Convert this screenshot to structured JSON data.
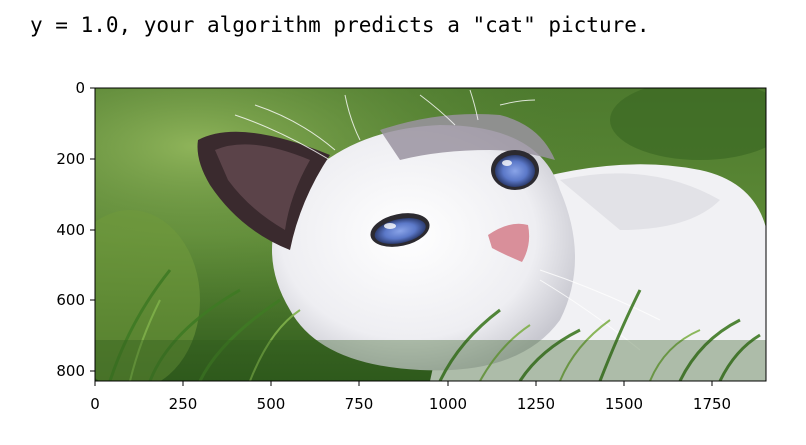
{
  "output": {
    "text": "y = 1.0, your algorithm predicts a \"cat\" picture."
  },
  "plot": {
    "image_subject": "white cat with blue eyes lying in green grass",
    "x_ticks": [
      "0",
      "250",
      "500",
      "750",
      "1000",
      "1250",
      "1500",
      "1750"
    ],
    "y_ticks": [
      "0",
      "200",
      "400",
      "600",
      "800"
    ],
    "colors": {
      "grass_dark": "#2f5a1c",
      "grass_light": "#6f9a3c",
      "fur": "#f4f4f6",
      "ear_dark": "#3a2a2e",
      "eye_blue": "#5b78c8",
      "nose_pink": "#d98f9a"
    }
  }
}
